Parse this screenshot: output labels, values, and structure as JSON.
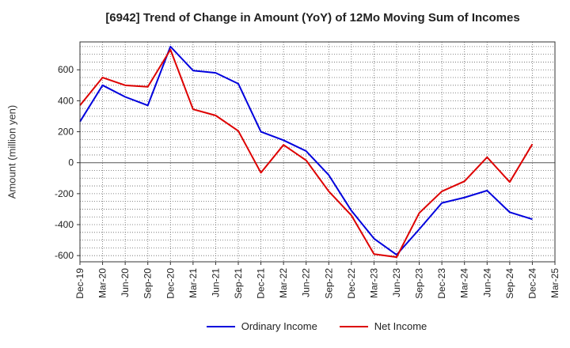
{
  "chart_data": {
    "type": "line",
    "title": "[6942]  Trend of Change in Amount (YoY) of 12Mo Moving Sum of Incomes",
    "xlabel": "",
    "ylabel": "Amount (million yen)",
    "categories": [
      "Dec-19",
      "Mar-20",
      "Jun-20",
      "Sep-20",
      "Dec-20",
      "Mar-21",
      "Jun-21",
      "Sep-21",
      "Dec-21",
      "Mar-22",
      "Jun-22",
      "Sep-22",
      "Dec-22",
      "Mar-23",
      "Jun-23",
      "Sep-23",
      "Dec-23",
      "Mar-24",
      "Jun-24",
      "Sep-24",
      "Dec-24",
      "Mar-25"
    ],
    "ylim": [
      -640,
      780
    ],
    "yticks": [
      -600,
      -400,
      -200,
      0,
      200,
      400,
      600
    ],
    "series": [
      {
        "name": "Ordinary Income",
        "color": "#0000dd",
        "values": [
          265,
          500,
          425,
          370,
          750,
          595,
          580,
          510,
          200,
          145,
          75,
          -80,
          -310,
          -490,
          -595,
          -430,
          -260,
          -225,
          -180,
          -320,
          -365,
          null
        ]
      },
      {
        "name": "Net Income",
        "color": "#dd0000",
        "values": [
          370,
          550,
          500,
          490,
          730,
          345,
          305,
          205,
          -65,
          115,
          15,
          -185,
          -340,
          -590,
          -610,
          -325,
          -185,
          -120,
          35,
          -125,
          120,
          null
        ]
      }
    ],
    "legend_position": "bottom",
    "grid": true
  }
}
